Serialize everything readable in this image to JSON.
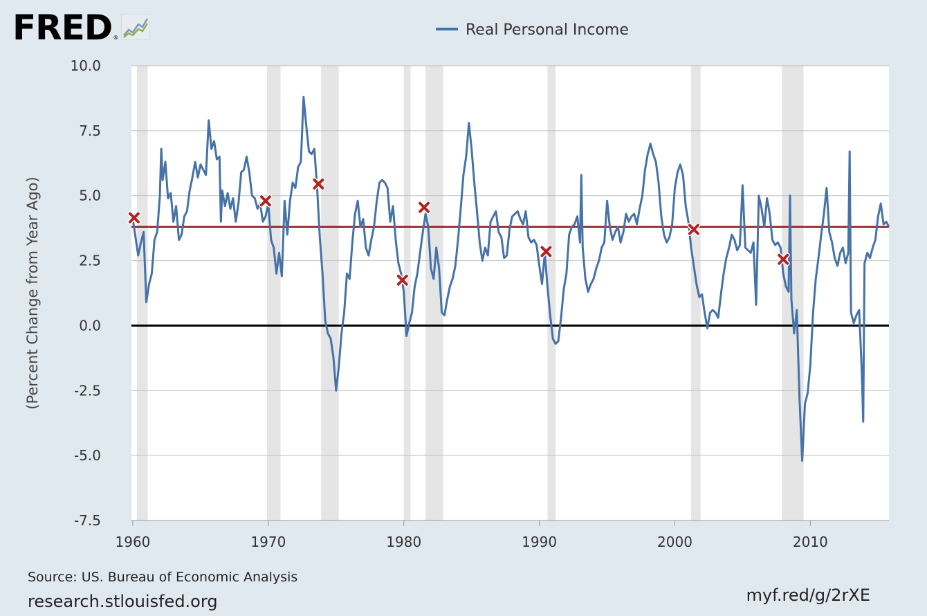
{
  "logo": {
    "text": "FRED",
    "registered": "®",
    "icon": "fred-chart-icon"
  },
  "footer": {
    "source": "Source: US. Bureau of Economic Analysis",
    "site": "research.stlouisfed.org",
    "short_url": "myf.red/g/2rXE"
  },
  "colors": {
    "background": "#e1e9f0",
    "plot_background": "#ffffff",
    "series": "#4572a7",
    "mean_line": "#8b1a1a",
    "zero_line": "#000000",
    "recession": "#e5e5e5",
    "marker": "#b22222",
    "grid": "#c0c0c0"
  },
  "chart_data": {
    "type": "line",
    "title": "",
    "xlabel": "",
    "ylabel": "(Percent Change from Year Ago)",
    "xlim": [
      1959.9,
      2015.8
    ],
    "ylim": [
      -7.5,
      10.0
    ],
    "x_ticks": [
      "1960",
      "1970",
      "1980",
      "1990",
      "2000",
      "2010"
    ],
    "y_ticks": [
      "10.0",
      "7.5",
      "5.0",
      "2.5",
      "0.0",
      "-2.5",
      "-5.0",
      "-7.5"
    ],
    "grid": true,
    "legend": {
      "position": "top-center",
      "entries": [
        "Real Personal Income"
      ]
    },
    "reference_lines": [
      {
        "y": 3.8,
        "color": "#8b1a1a"
      },
      {
        "y": 0.0,
        "color": "#000000"
      }
    ],
    "recessions": [
      [
        1960.3,
        1961.1
      ],
      [
        1969.9,
        1970.9
      ],
      [
        1973.9,
        1975.2
      ],
      [
        1980.0,
        1980.5
      ],
      [
        1981.6,
        1982.9
      ],
      [
        1990.6,
        1991.2
      ],
      [
        2001.2,
        2001.9
      ],
      [
        2007.9,
        2009.5
      ]
    ],
    "markers": [
      {
        "x": 1960.1,
        "y": 4.15
      },
      {
        "x": 1969.8,
        "y": 4.8
      },
      {
        "x": 1973.7,
        "y": 5.45
      },
      {
        "x": 1979.9,
        "y": 1.75
      },
      {
        "x": 1981.5,
        "y": 4.55
      },
      {
        "x": 1990.5,
        "y": 2.85
      },
      {
        "x": 2001.4,
        "y": 3.7
      },
      {
        "x": 2008.0,
        "y": 2.55
      }
    ],
    "series": [
      {
        "name": "Real Personal Income",
        "color": "#4572a7",
        "points": [
          [
            1960.0,
            4.1
          ],
          [
            1960.2,
            3.4
          ],
          [
            1960.4,
            2.7
          ],
          [
            1960.6,
            3.2
          ],
          [
            1960.8,
            3.6
          ],
          [
            1961.0,
            0.9
          ],
          [
            1961.2,
            1.6
          ],
          [
            1961.4,
            2.0
          ],
          [
            1961.6,
            3.3
          ],
          [
            1961.8,
            3.6
          ],
          [
            1962.0,
            5.0
          ],
          [
            1962.1,
            6.8
          ],
          [
            1962.2,
            5.6
          ],
          [
            1962.4,
            6.3
          ],
          [
            1962.6,
            4.9
          ],
          [
            1962.8,
            5.1
          ],
          [
            1963.0,
            4.0
          ],
          [
            1963.2,
            4.6
          ],
          [
            1963.4,
            3.3
          ],
          [
            1963.6,
            3.5
          ],
          [
            1963.8,
            4.2
          ],
          [
            1964.0,
            4.4
          ],
          [
            1964.2,
            5.2
          ],
          [
            1964.4,
            5.7
          ],
          [
            1964.6,
            6.3
          ],
          [
            1964.8,
            5.7
          ],
          [
            1965.0,
            6.2
          ],
          [
            1965.2,
            6.0
          ],
          [
            1965.4,
            5.8
          ],
          [
            1965.6,
            7.9
          ],
          [
            1965.8,
            6.8
          ],
          [
            1966.0,
            7.1
          ],
          [
            1966.2,
            6.4
          ],
          [
            1966.4,
            6.5
          ],
          [
            1966.5,
            4.0
          ],
          [
            1966.6,
            5.2
          ],
          [
            1966.8,
            4.6
          ],
          [
            1967.0,
            5.1
          ],
          [
            1967.2,
            4.5
          ],
          [
            1967.4,
            4.9
          ],
          [
            1967.6,
            4.0
          ],
          [
            1967.8,
            4.7
          ],
          [
            1968.0,
            5.9
          ],
          [
            1968.2,
            6.0
          ],
          [
            1968.4,
            6.5
          ],
          [
            1968.6,
            5.9
          ],
          [
            1968.8,
            5.0
          ],
          [
            1969.0,
            4.9
          ],
          [
            1969.2,
            4.5
          ],
          [
            1969.4,
            4.7
          ],
          [
            1969.6,
            4.0
          ],
          [
            1969.8,
            4.2
          ],
          [
            1970.0,
            4.7
          ],
          [
            1970.2,
            3.3
          ],
          [
            1970.4,
            3.0
          ],
          [
            1970.6,
            2.0
          ],
          [
            1970.8,
            2.8
          ],
          [
            1971.0,
            1.9
          ],
          [
            1971.2,
            4.8
          ],
          [
            1971.4,
            3.5
          ],
          [
            1971.6,
            4.8
          ],
          [
            1971.8,
            5.5
          ],
          [
            1972.0,
            5.3
          ],
          [
            1972.2,
            6.1
          ],
          [
            1972.4,
            6.3
          ],
          [
            1972.6,
            8.8
          ],
          [
            1972.8,
            7.7
          ],
          [
            1973.0,
            6.7
          ],
          [
            1973.2,
            6.6
          ],
          [
            1973.4,
            6.8
          ],
          [
            1973.6,
            5.3
          ],
          [
            1973.8,
            3.4
          ],
          [
            1974.0,
            2.0
          ],
          [
            1974.2,
            0.2
          ],
          [
            1974.4,
            -0.3
          ],
          [
            1974.6,
            -0.5
          ],
          [
            1974.8,
            -1.2
          ],
          [
            1975.0,
            -2.5
          ],
          [
            1975.2,
            -1.6
          ],
          [
            1975.4,
            -0.3
          ],
          [
            1975.6,
            0.5
          ],
          [
            1975.8,
            2.0
          ],
          [
            1976.0,
            1.8
          ],
          [
            1976.2,
            3.2
          ],
          [
            1976.4,
            4.3
          ],
          [
            1976.6,
            4.8
          ],
          [
            1976.8,
            3.8
          ],
          [
            1977.0,
            4.1
          ],
          [
            1977.2,
            3.0
          ],
          [
            1977.4,
            2.7
          ],
          [
            1977.6,
            3.3
          ],
          [
            1977.8,
            3.8
          ],
          [
            1978.0,
            4.8
          ],
          [
            1978.2,
            5.5
          ],
          [
            1978.4,
            5.6
          ],
          [
            1978.6,
            5.5
          ],
          [
            1978.8,
            5.3
          ],
          [
            1979.0,
            4.0
          ],
          [
            1979.2,
            4.6
          ],
          [
            1979.4,
            3.3
          ],
          [
            1979.6,
            2.4
          ],
          [
            1979.8,
            2.0
          ],
          [
            1980.0,
            1.3
          ],
          [
            1980.2,
            -0.4
          ],
          [
            1980.4,
            0.1
          ],
          [
            1980.6,
            0.5
          ],
          [
            1980.8,
            1.5
          ],
          [
            1981.0,
            2.0
          ],
          [
            1981.2,
            2.8
          ],
          [
            1981.4,
            3.6
          ],
          [
            1981.6,
            4.3
          ],
          [
            1981.8,
            3.8
          ],
          [
            1982.0,
            2.2
          ],
          [
            1982.2,
            1.8
          ],
          [
            1982.4,
            3.0
          ],
          [
            1982.6,
            2.2
          ],
          [
            1982.8,
            0.5
          ],
          [
            1983.0,
            0.4
          ],
          [
            1983.2,
            1.0
          ],
          [
            1983.4,
            1.5
          ],
          [
            1983.6,
            1.8
          ],
          [
            1983.8,
            2.3
          ],
          [
            1984.0,
            3.3
          ],
          [
            1984.2,
            4.5
          ],
          [
            1984.4,
            5.8
          ],
          [
            1984.6,
            6.5
          ],
          [
            1984.8,
            7.8
          ],
          [
            1985.0,
            6.8
          ],
          [
            1985.2,
            5.5
          ],
          [
            1985.4,
            4.4
          ],
          [
            1985.6,
            3.2
          ],
          [
            1985.8,
            2.5
          ],
          [
            1986.0,
            3.0
          ],
          [
            1986.2,
            2.7
          ],
          [
            1986.4,
            4.0
          ],
          [
            1986.6,
            4.2
          ],
          [
            1986.8,
            4.4
          ],
          [
            1987.0,
            3.6
          ],
          [
            1987.2,
            3.4
          ],
          [
            1987.4,
            2.6
          ],
          [
            1987.6,
            2.7
          ],
          [
            1987.8,
            3.7
          ],
          [
            1988.0,
            4.2
          ],
          [
            1988.2,
            4.3
          ],
          [
            1988.4,
            4.4
          ],
          [
            1988.6,
            4.1
          ],
          [
            1988.8,
            3.9
          ],
          [
            1989.0,
            4.4
          ],
          [
            1989.2,
            3.4
          ],
          [
            1989.4,
            3.2
          ],
          [
            1989.6,
            3.3
          ],
          [
            1989.8,
            3.1
          ],
          [
            1990.0,
            2.3
          ],
          [
            1990.2,
            1.6
          ],
          [
            1990.4,
            2.8
          ],
          [
            1990.6,
            1.5
          ],
          [
            1990.8,
            0.4
          ],
          [
            1991.0,
            -0.5
          ],
          [
            1991.2,
            -0.7
          ],
          [
            1991.4,
            -0.6
          ],
          [
            1991.6,
            0.3
          ],
          [
            1991.8,
            1.4
          ],
          [
            1992.0,
            2.0
          ],
          [
            1992.2,
            3.5
          ],
          [
            1992.4,
            3.8
          ],
          [
            1992.6,
            3.9
          ],
          [
            1992.8,
            4.2
          ],
          [
            1993.0,
            3.2
          ],
          [
            1993.1,
            5.8
          ],
          [
            1993.2,
            3.0
          ],
          [
            1993.4,
            1.8
          ],
          [
            1993.6,
            1.3
          ],
          [
            1993.8,
            1.6
          ],
          [
            1994.0,
            1.8
          ],
          [
            1994.2,
            2.2
          ],
          [
            1994.4,
            2.5
          ],
          [
            1994.6,
            3.0
          ],
          [
            1994.8,
            3.2
          ],
          [
            1995.0,
            4.8
          ],
          [
            1995.2,
            3.8
          ],
          [
            1995.4,
            3.3
          ],
          [
            1995.6,
            3.6
          ],
          [
            1995.8,
            3.8
          ],
          [
            1996.0,
            3.2
          ],
          [
            1996.2,
            3.6
          ],
          [
            1996.4,
            4.3
          ],
          [
            1996.6,
            4.0
          ],
          [
            1996.8,
            4.2
          ],
          [
            1997.0,
            4.3
          ],
          [
            1997.2,
            3.9
          ],
          [
            1997.4,
            4.5
          ],
          [
            1997.6,
            5.0
          ],
          [
            1997.8,
            6.0
          ],
          [
            1998.0,
            6.6
          ],
          [
            1998.2,
            7.0
          ],
          [
            1998.4,
            6.6
          ],
          [
            1998.6,
            6.3
          ],
          [
            1998.8,
            5.5
          ],
          [
            1999.0,
            4.2
          ],
          [
            1999.2,
            3.5
          ],
          [
            1999.4,
            3.2
          ],
          [
            1999.6,
            3.4
          ],
          [
            1999.8,
            3.9
          ],
          [
            2000.0,
            5.3
          ],
          [
            2000.2,
            5.9
          ],
          [
            2000.4,
            6.2
          ],
          [
            2000.6,
            5.8
          ],
          [
            2000.8,
            4.6
          ],
          [
            2001.0,
            4.0
          ],
          [
            2001.2,
            3.0
          ],
          [
            2001.4,
            2.3
          ],
          [
            2001.6,
            1.6
          ],
          [
            2001.8,
            1.1
          ],
          [
            2002.0,
            1.2
          ],
          [
            2002.2,
            0.5
          ],
          [
            2002.4,
            -0.1
          ],
          [
            2002.6,
            0.5
          ],
          [
            2002.8,
            0.6
          ],
          [
            2003.0,
            0.5
          ],
          [
            2003.2,
            0.3
          ],
          [
            2003.4,
            1.2
          ],
          [
            2003.6,
            2.0
          ],
          [
            2003.8,
            2.6
          ],
          [
            2004.0,
            3.0
          ],
          [
            2004.2,
            3.5
          ],
          [
            2004.4,
            3.3
          ],
          [
            2004.6,
            2.9
          ],
          [
            2004.8,
            3.1
          ],
          [
            2005.0,
            5.4
          ],
          [
            2005.2,
            3.0
          ],
          [
            2005.4,
            2.9
          ],
          [
            2005.6,
            2.8
          ],
          [
            2005.8,
            3.2
          ],
          [
            2006.0,
            0.8
          ],
          [
            2006.2,
            5.0
          ],
          [
            2006.4,
            4.5
          ],
          [
            2006.6,
            3.8
          ],
          [
            2006.8,
            4.9
          ],
          [
            2007.0,
            4.3
          ],
          [
            2007.2,
            3.3
          ],
          [
            2007.4,
            3.1
          ],
          [
            2007.6,
            3.2
          ],
          [
            2007.8,
            3.0
          ],
          [
            2008.0,
            2.0
          ],
          [
            2008.2,
            1.5
          ],
          [
            2008.4,
            1.3
          ],
          [
            2008.5,
            5.0
          ],
          [
            2008.6,
            1.0
          ],
          [
            2008.8,
            -0.3
          ],
          [
            2009.0,
            0.6
          ],
          [
            2009.2,
            -2.8
          ],
          [
            2009.4,
            -5.2
          ],
          [
            2009.6,
            -3.0
          ],
          [
            2009.8,
            -2.6
          ],
          [
            2010.0,
            -1.5
          ],
          [
            2010.2,
            0.5
          ],
          [
            2010.4,
            1.8
          ],
          [
            2010.6,
            2.6
          ],
          [
            2010.8,
            3.5
          ],
          [
            2011.0,
            4.3
          ],
          [
            2011.2,
            5.3
          ],
          [
            2011.4,
            3.6
          ],
          [
            2011.6,
            3.2
          ],
          [
            2011.8,
            2.6
          ],
          [
            2012.0,
            2.3
          ],
          [
            2012.2,
            2.8
          ],
          [
            2012.4,
            3.0
          ],
          [
            2012.6,
            2.4
          ],
          [
            2012.8,
            2.8
          ],
          [
            2012.9,
            6.7
          ],
          [
            2013.0,
            0.5
          ],
          [
            2013.2,
            0.1
          ],
          [
            2013.4,
            0.4
          ],
          [
            2013.6,
            0.6
          ],
          [
            2013.8,
            -1.8
          ],
          [
            2013.9,
            -3.7
          ],
          [
            2014.0,
            2.4
          ],
          [
            2014.2,
            2.8
          ],
          [
            2014.4,
            2.6
          ],
          [
            2014.6,
            3.0
          ],
          [
            2014.8,
            3.3
          ],
          [
            2015.0,
            4.2
          ],
          [
            2015.2,
            4.7
          ],
          [
            2015.4,
            3.9
          ],
          [
            2015.6,
            4.0
          ],
          [
            2015.8,
            3.8
          ]
        ]
      }
    ]
  }
}
